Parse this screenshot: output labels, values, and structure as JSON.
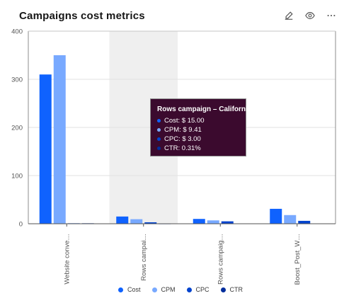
{
  "header": {
    "title": "Campaigns cost metrics",
    "edit_icon": "edit-icon",
    "view_icon": "eye-icon",
    "more_icon": "overflow-menu-icon"
  },
  "colors": {
    "Cost": "#0f62fe",
    "CPM": "#78a9ff",
    "CPC": "#0043ce",
    "CTR": "#002d9c",
    "highlight": "#efefef",
    "tooltip_bg": "#3b0a2e"
  },
  "chart_data": {
    "type": "bar",
    "title": "Campaigns cost metrics",
    "categories": [
      "Website conve…",
      "Rows campai…",
      "Rows campaig…",
      "Boost_Post_W…"
    ],
    "series": [
      {
        "name": "Cost",
        "values": [
          310,
          15,
          10,
          31
        ]
      },
      {
        "name": "CPM",
        "values": [
          350,
          9.41,
          7,
          18
        ]
      },
      {
        "name": "CPC",
        "values": [
          1,
          3,
          5,
          6
        ]
      },
      {
        "name": "CTR",
        "values": [
          1,
          0.31,
          0.5,
          0.5
        ]
      }
    ],
    "ylim": [
      0,
      400
    ],
    "yticks": [
      "0",
      "100",
      "200",
      "300",
      "400"
    ],
    "grid": true,
    "legend_position": "bottom",
    "highlighted_category_index": 1
  },
  "tooltip": {
    "title": "Rows campaign – California",
    "rows": [
      {
        "label": "Cost: $ 15.00",
        "series": "Cost"
      },
      {
        "label": "CPM: $ 9.41",
        "series": "CPM"
      },
      {
        "label": "CPC: $ 3.00",
        "series": "CPC"
      },
      {
        "label": "CTR: 0.31%",
        "series": "CTR"
      }
    ]
  },
  "legend": [
    {
      "label": "Cost",
      "series": "Cost"
    },
    {
      "label": "CPM",
      "series": "CPM"
    },
    {
      "label": "CPC",
      "series": "CPC"
    },
    {
      "label": "CTR",
      "series": "CTR"
    }
  ]
}
